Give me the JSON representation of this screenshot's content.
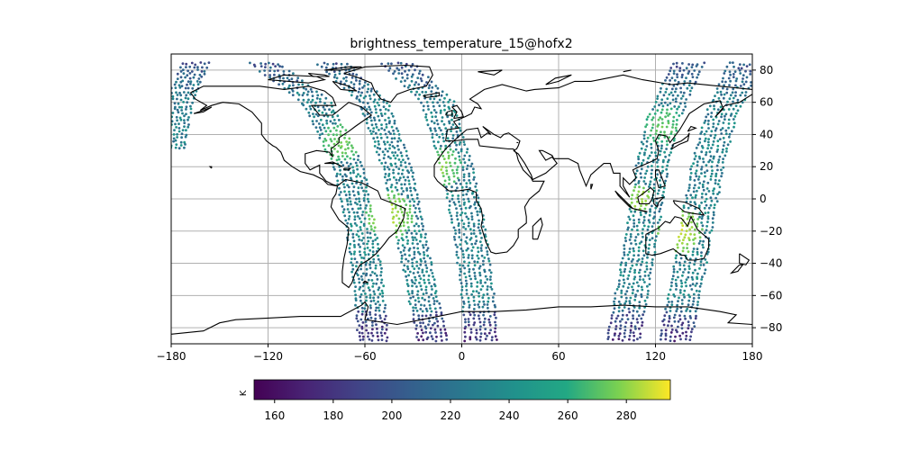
{
  "chart_data": {
    "type": "scatter",
    "title": "brightness_temperature_15@hofx2",
    "projection": "plate-carree",
    "xlim": [
      -180,
      180
    ],
    "ylim": [
      -90,
      90
    ],
    "x_ticks": [
      -180,
      -120,
      -60,
      0,
      60,
      120,
      180
    ],
    "x_tick_labels": [
      "−180",
      "−120",
      "−60",
      "0",
      "60",
      "120",
      "180"
    ],
    "y_ticks": [
      80,
      60,
      40,
      20,
      0,
      -20,
      -40,
      -60,
      -80
    ],
    "y_tick_labels": [
      "80",
      "60",
      "40",
      "20",
      "0",
      "−20",
      "−40",
      "−60",
      "−80"
    ],
    "grid": true,
    "y_axis_side": "right",
    "colormap": "viridis",
    "colorbar": {
      "orientation": "horizontal",
      "placement": "bottom",
      "unit_label": "K",
      "range": [
        153,
        295
      ],
      "ticks": [
        160,
        180,
        200,
        220,
        240,
        260,
        280
      ]
    },
    "swaths": [
      {
        "track": [
          [
            -122,
            84
          ],
          [
            -90,
            60
          ],
          [
            -70,
            20
          ],
          [
            -62,
            -20
          ],
          [
            -57,
            -60
          ],
          [
            -55,
            -88
          ]
        ],
        "width_deg": 20
      },
      {
        "track": [
          [
            -80,
            84
          ],
          [
            -55,
            60
          ],
          [
            -40,
            20
          ],
          [
            -32,
            -20
          ],
          [
            -24,
            -60
          ],
          [
            -18,
            -88
          ]
        ],
        "width_deg": 20
      },
      {
        "track": [
          [
            -40,
            84
          ],
          [
            -15,
            60
          ],
          [
            -3,
            20
          ],
          [
            5,
            -20
          ],
          [
            10,
            -60
          ],
          [
            12,
            -88
          ]
        ],
        "width_deg": 22
      },
      {
        "track": [
          [
            140,
            84
          ],
          [
            125,
            50
          ],
          [
            118,
            20
          ],
          [
            112,
            -20
          ],
          [
            105,
            -60
          ],
          [
            100,
            -88
          ]
        ],
        "width_deg": 22
      },
      {
        "track": [
          [
            175,
            84
          ],
          [
            160,
            50
          ],
          [
            152,
            20
          ],
          [
            145,
            -20
          ],
          [
            138,
            -60
          ],
          [
            132,
            -88
          ]
        ],
        "width_deg": 22
      },
      {
        "track": [
          [
            -165,
            84
          ],
          [
            -175,
            60
          ],
          [
            -180,
            30
          ]
        ],
        "width_deg": 18
      }
    ],
    "warm_regions": [
      {
        "lon": -75,
        "lat": 35,
        "radius": 12,
        "value": 278
      },
      {
        "lon": -45,
        "lat": -10,
        "radius": 15,
        "value": 288
      },
      {
        "lon": -12,
        "lat": 20,
        "radius": 12,
        "value": 280
      },
      {
        "lon": 135,
        "lat": -20,
        "radius": 14,
        "value": 290
      },
      {
        "lon": 125,
        "lat": 45,
        "radius": 12,
        "value": 275
      },
      {
        "lon": 110,
        "lat": 0,
        "radius": 8,
        "value": 285
      }
    ]
  }
}
